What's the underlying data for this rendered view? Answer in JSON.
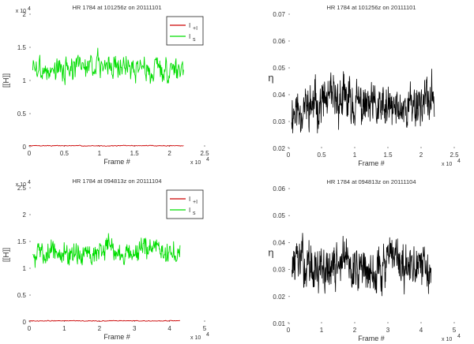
{
  "chart_data": [
    {
      "type": "line",
      "title": "HR 1784 at 101256z on 20111101",
      "xlabel": "Frame #",
      "ylabel": "[[H]]",
      "x_multiplier_label": "x 10",
      "x_exponent": "4",
      "y_multiplier_label": "x 10",
      "y_exponent": "4",
      "xlim": [
        0,
        2.5
      ],
      "ylim": [
        0,
        2
      ],
      "xticks": [
        "0",
        "0.5",
        "1",
        "1.5",
        "2",
        "2.5"
      ],
      "yticks": [
        "0",
        "0.5",
        "1",
        "1.5",
        "2"
      ],
      "legend": [
        {
          "label": "I",
          "sub": "+I",
          "color": "#cc0000"
        },
        {
          "label": "I",
          "sub": "s",
          "color": "#00dd00"
        }
      ],
      "series": [
        {
          "color": "#00dd00",
          "x_range": [
            0.05,
            2.2
          ],
          "mean": 1.2,
          "amp": 0.17,
          "points": 300,
          "seed": 3
        },
        {
          "color": "#cc0000",
          "x_range": [
            0.0,
            2.2
          ],
          "mean": 0.015,
          "amp": 0.006,
          "points": 200,
          "seed": 7
        }
      ]
    },
    {
      "type": "line",
      "title": "HR 1784 at 101256z on 20111101",
      "xlabel": "Frame #",
      "ylabel": "η",
      "x_multiplier_label": "x 10",
      "x_exponent": "4",
      "xlim": [
        0,
        2.5
      ],
      "ylim": [
        0.02,
        0.07
      ],
      "xticks": [
        "0",
        "0.5",
        "1",
        "1.5",
        "2",
        "2.5"
      ],
      "yticks": [
        "0.02",
        "0.03",
        "0.04",
        "0.05",
        "0.06",
        "0.07"
      ],
      "series": [
        {
          "color": "#000000",
          "x_range": [
            0.05,
            2.2
          ],
          "mean": 0.036,
          "amp": 0.0075,
          "points": 500,
          "seed": 11
        }
      ]
    },
    {
      "type": "line",
      "title": "HR 1784 at 094813z on 20111104",
      "xlabel": "Frame #",
      "ylabel": "[[H]]",
      "x_multiplier_label": "x 10",
      "x_exponent": "4",
      "y_multiplier_label": "x 10",
      "y_exponent": "4",
      "xlim": [
        0,
        5
      ],
      "ylim": [
        0,
        2.5
      ],
      "xticks": [
        "0",
        "1",
        "2",
        "3",
        "4",
        "5"
      ],
      "yticks": [
        "0",
        "0.5",
        "1",
        "1.5",
        "2",
        "2.5"
      ],
      "legend": [
        {
          "label": "I",
          "sub": "+I",
          "color": "#cc0000"
        },
        {
          "label": "I",
          "sub": "s",
          "color": "#00dd00"
        }
      ],
      "series": [
        {
          "color": "#00dd00",
          "x_range": [
            0.1,
            4.3
          ],
          "mean": 1.3,
          "amp": 0.2,
          "points": 320,
          "seed": 5
        },
        {
          "color": "#cc0000",
          "x_range": [
            0.0,
            4.3
          ],
          "mean": 0.02,
          "amp": 0.007,
          "points": 200,
          "seed": 9
        }
      ]
    },
    {
      "type": "line",
      "title": "HR 1784 at 094813z on 20111104",
      "xlabel": "Frame #",
      "ylabel": "η",
      "x_multiplier_label": "x 10",
      "x_exponent": "4",
      "xlim": [
        0,
        5
      ],
      "ylim": [
        0.01,
        0.06
      ],
      "xticks": [
        "0",
        "1",
        "2",
        "3",
        "4",
        "5"
      ],
      "yticks": [
        "0.01",
        "0.02",
        "0.03",
        "0.04",
        "0.05",
        "0.06"
      ],
      "series": [
        {
          "color": "#000000",
          "x_range": [
            0.1,
            4.3
          ],
          "mean": 0.031,
          "amp": 0.0075,
          "points": 500,
          "seed": 13
        }
      ]
    }
  ]
}
